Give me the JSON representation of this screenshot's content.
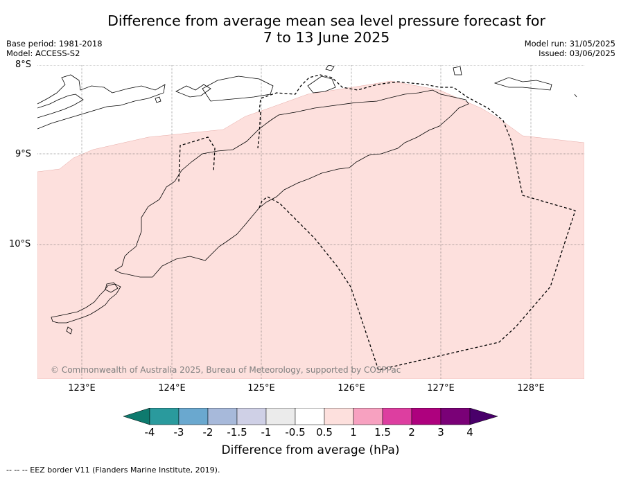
{
  "title_line1": "Difference from average mean sea level pressure forecast for",
  "title_line2": "7 to 13 June 2025",
  "meta_left": {
    "base_period": "Base period: 1981-2018",
    "model": "Model: ACCESS-S2"
  },
  "meta_right": {
    "model_run": "Model run: 31/05/2025",
    "issued": "Issued: 03/06/2025"
  },
  "map": {
    "lat_labels": [
      "8°S",
      "9°S",
      "10°S"
    ],
    "lon_labels": [
      "123°E",
      "124°E",
      "125°E",
      "126°E",
      "127°E",
      "128°E"
    ],
    "lon_range": [
      122.5,
      128.6
    ],
    "lat_range": [
      -11.5,
      -8.0
    ],
    "anomaly_fill_color": "#fde0dd",
    "anomaly_band": "0.5 to 1",
    "copyright": "© Commonwealth of Australia 2025, Bureau of Meteorology, supported by COSPPac"
  },
  "colorbar": {
    "ticks": [
      "-4",
      "-3",
      "-2",
      "-1.5",
      "-1",
      "-0.5",
      "0.5",
      "1",
      "1.5",
      "2",
      "3",
      "4"
    ],
    "colors": [
      "#0e7a6e",
      "#2a9a9d",
      "#6aa8cf",
      "#a7b9da",
      "#cfd0e6",
      "#ebebeb",
      "#ffffff",
      "#fde0dd",
      "#f7a1c0",
      "#dd3ea0",
      "#ae017e",
      "#7a0177",
      "#49006a"
    ],
    "label": "Difference from average (hPa)"
  },
  "footnote": "--  --  -- EEZ border V11 (Flanders Marine Institute, 2019)."
}
